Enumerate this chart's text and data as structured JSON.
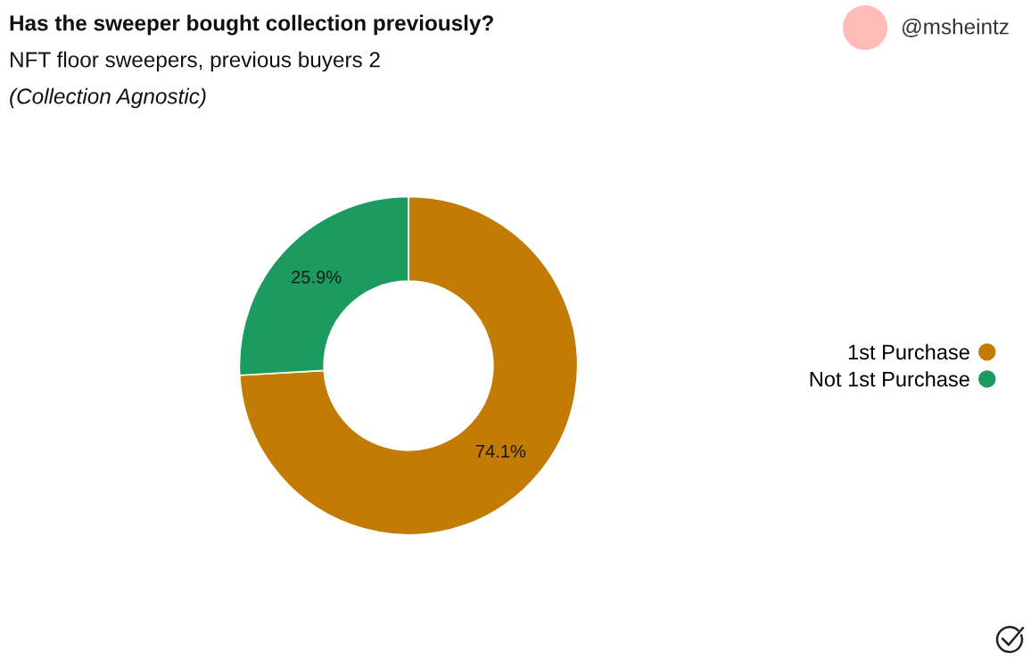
{
  "chart_data": {
    "type": "donut",
    "title": "Has the sweeper bought collection previously?",
    "subtitle": "NFT floor sweepers, previous buyers 2",
    "annotations": [
      "(Collection Agnostic)",
      "@msheintz"
    ],
    "categories": [
      "1st Purchase",
      "Not 1st Purchase"
    ],
    "values": [
      74.1,
      25.9
    ],
    "colors": [
      "#c27c03",
      "#1d9a5f"
    ],
    "value_labels": [
      "74.1%",
      "25.9%"
    ],
    "legend": "right"
  }
}
